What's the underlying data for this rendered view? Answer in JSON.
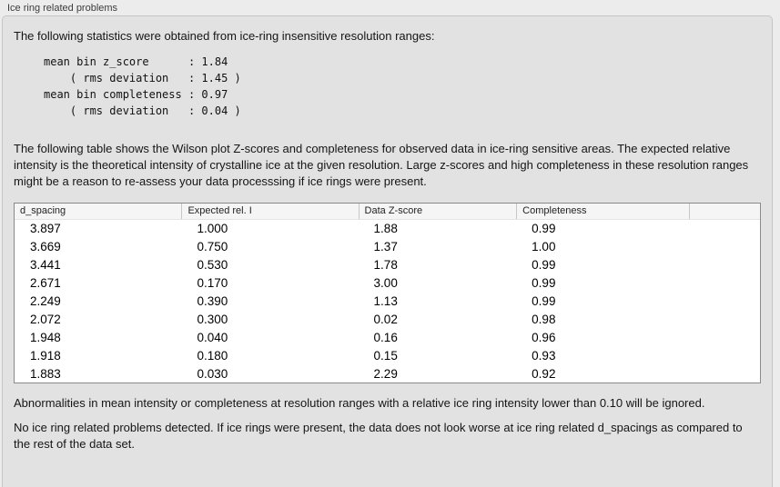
{
  "panel": {
    "title": "Ice ring related problems"
  },
  "intro": {
    "text": "The following statistics were obtained from ice-ring insensitive resolution ranges:"
  },
  "stats": {
    "lines": [
      "mean bin z_score      : 1.84",
      "    ( rms deviation   : 1.45 )",
      "mean bin completeness : 0.97",
      "    ( rms deviation   : 0.04 )"
    ]
  },
  "description": {
    "text": "The following table shows the Wilson plot Z-scores and completeness for observed data in ice-ring sensitive areas. The expected relative intensity is the theoretical intensity of crystalline ice at the given resolution. Large z-scores and high completeness in these resolution ranges might be a reason to re-assess your data processsing if ice rings were present."
  },
  "table": {
    "columns": [
      "d_spacing",
      "Expected rel. I",
      "Data Z-score",
      "Completeness",
      ""
    ],
    "rows": [
      [
        "3.897",
        "1.000",
        "1.88",
        "0.99"
      ],
      [
        "3.669",
        "0.750",
        "1.37",
        "1.00"
      ],
      [
        "3.441",
        "0.530",
        "1.78",
        "0.99"
      ],
      [
        "2.671",
        "0.170",
        "3.00",
        "0.99"
      ],
      [
        "2.249",
        "0.390",
        "1.13",
        "0.99"
      ],
      [
        "2.072",
        "0.300",
        "0.02",
        "0.98"
      ],
      [
        "1.948",
        "0.040",
        "0.16",
        "0.96"
      ],
      [
        "1.918",
        "0.180",
        "0.15",
        "0.93"
      ],
      [
        "1.883",
        "0.030",
        "2.29",
        "0.92"
      ]
    ]
  },
  "notes": {
    "ignore_note": "Abnormalities in mean intensity or completeness at resolution ranges with a relative ice ring intensity lower than 0.10 will be ignored.",
    "conclusion": "No ice ring related problems detected. If ice rings were present, the data does not look worse at ice ring related d_spacings as compared to the rest of the data set."
  },
  "colors": {
    "page_bg": "#ececec",
    "panel_bg": "#e2e2e2",
    "panel_border": "#c6c6c6",
    "table_border": "#8a8a8a",
    "table_header_bg": "#f5f5f5",
    "table_body_bg": "#ffffff",
    "text": "#151515"
  }
}
